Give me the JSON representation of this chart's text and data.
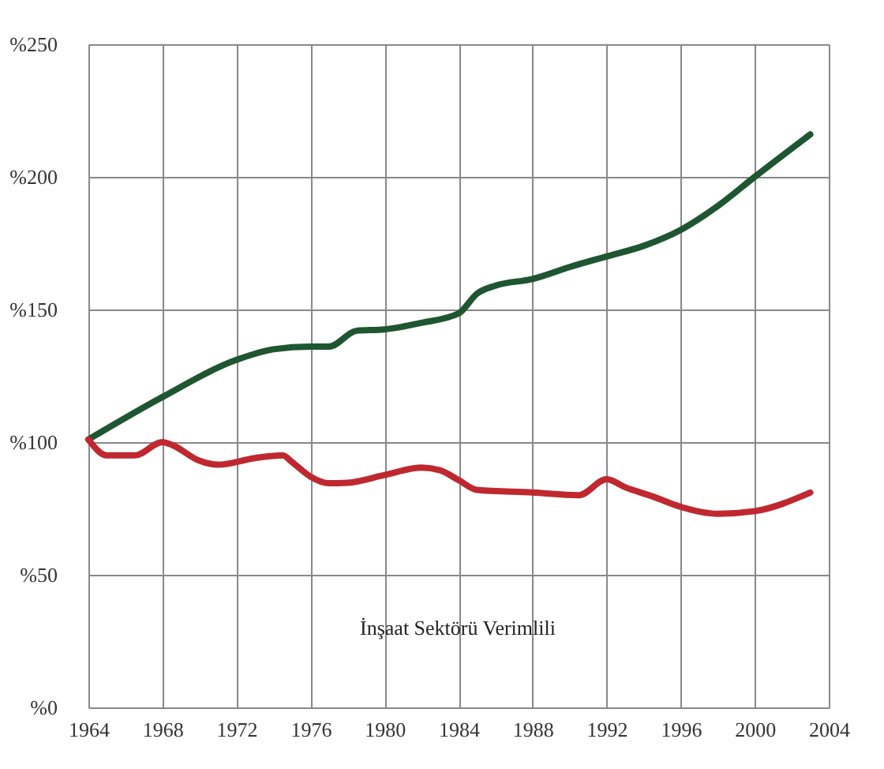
{
  "chart_data": {
    "type": "line",
    "xlim": [
      1964,
      2004
    ],
    "xticks": [
      1964,
      1968,
      1972,
      1976,
      1980,
      1984,
      1988,
      1992,
      1996,
      2000,
      2004
    ],
    "ylim": [
      0,
      250
    ],
    "yticks": [
      {
        "value": 0,
        "label": "%0"
      },
      {
        "value": 50,
        "label": "%50"
      },
      {
        "value": 100,
        "label": "%100"
      },
      {
        "value": 150,
        "label": "%150"
      },
      {
        "value": 200,
        "label": "%200"
      },
      {
        "value": 250,
        "label": "%250"
      }
    ],
    "grid": true,
    "marker": "none",
    "line_style": "solid",
    "annotations": [
      "İnşaat Sektörü Verimlili"
    ],
    "series": [
      {
        "color": "#1e5631",
        "x": [
          1964,
          1968,
          1972,
          1974,
          1976,
          1977,
          1978.5,
          1980,
          1982,
          1984,
          1985,
          1986,
          1988,
          1990,
          1992,
          1994,
          1996,
          1998,
          2000,
          2003
        ],
        "values": [
          101,
          117,
          131,
          135,
          136,
          136,
          142,
          142.5,
          145,
          148.5,
          156,
          159,
          161.5,
          166,
          170,
          174,
          180,
          189,
          200,
          216
        ]
      },
      {
        "color": "#c0282f",
        "x": [
          1964,
          1965,
          1966.5,
          1968,
          1968.5,
          1970,
          1971,
          1973,
          1974.5,
          1975,
          1976,
          1977,
          1978,
          1980,
          1982,
          1983,
          1984,
          1985,
          1988,
          1990.5,
          1992,
          1993,
          1994.5,
          1996,
          1998,
          2000,
          2003
        ],
        "values": [
          101,
          95,
          95,
          100,
          99,
          93,
          91.5,
          94,
          95,
          92.5,
          87,
          84.5,
          84.7,
          87.6,
          90.4,
          89.4,
          85.7,
          82,
          81,
          80,
          86,
          83,
          79.5,
          75.6,
          73,
          74,
          81
        ]
      }
    ]
  }
}
